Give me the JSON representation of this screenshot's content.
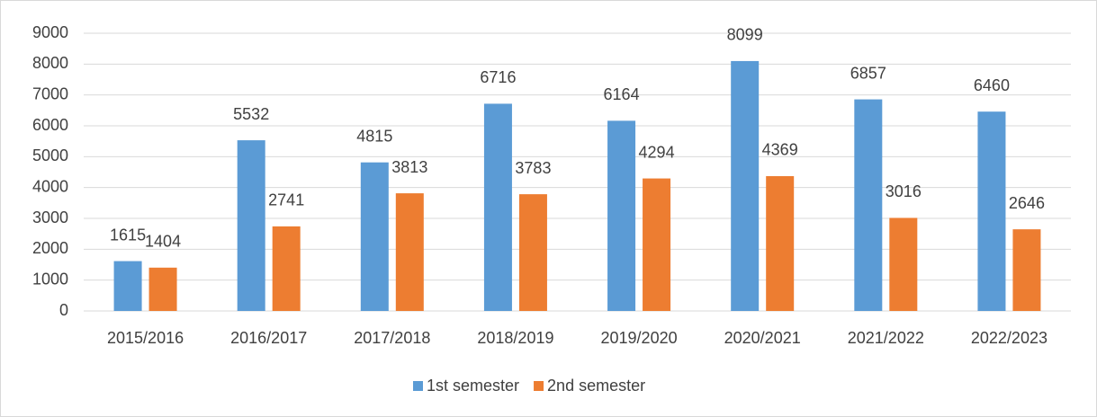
{
  "chart_data": {
    "type": "bar",
    "categories": [
      "2015/2016",
      "2016/2017",
      "2017/2018",
      "2018/2019",
      "2019/2020",
      "2020/2021",
      "2021/2022",
      "2022/2023"
    ],
    "series": [
      {
        "name": "1st semester",
        "color": "#5b9bd5",
        "values": [
          1615,
          5532,
          4815,
          6716,
          6164,
          8099,
          6857,
          6460
        ]
      },
      {
        "name": "2nd semester",
        "color": "#ed7d31",
        "values": [
          1404,
          2741,
          3813,
          3783,
          4294,
          4369,
          3016,
          2646
        ]
      }
    ],
    "ylim": [
      0,
      9000
    ],
    "yticks": [
      0,
      1000,
      2000,
      3000,
      4000,
      5000,
      6000,
      7000,
      8000,
      9000
    ],
    "grid": true,
    "legend": "bottom"
  }
}
